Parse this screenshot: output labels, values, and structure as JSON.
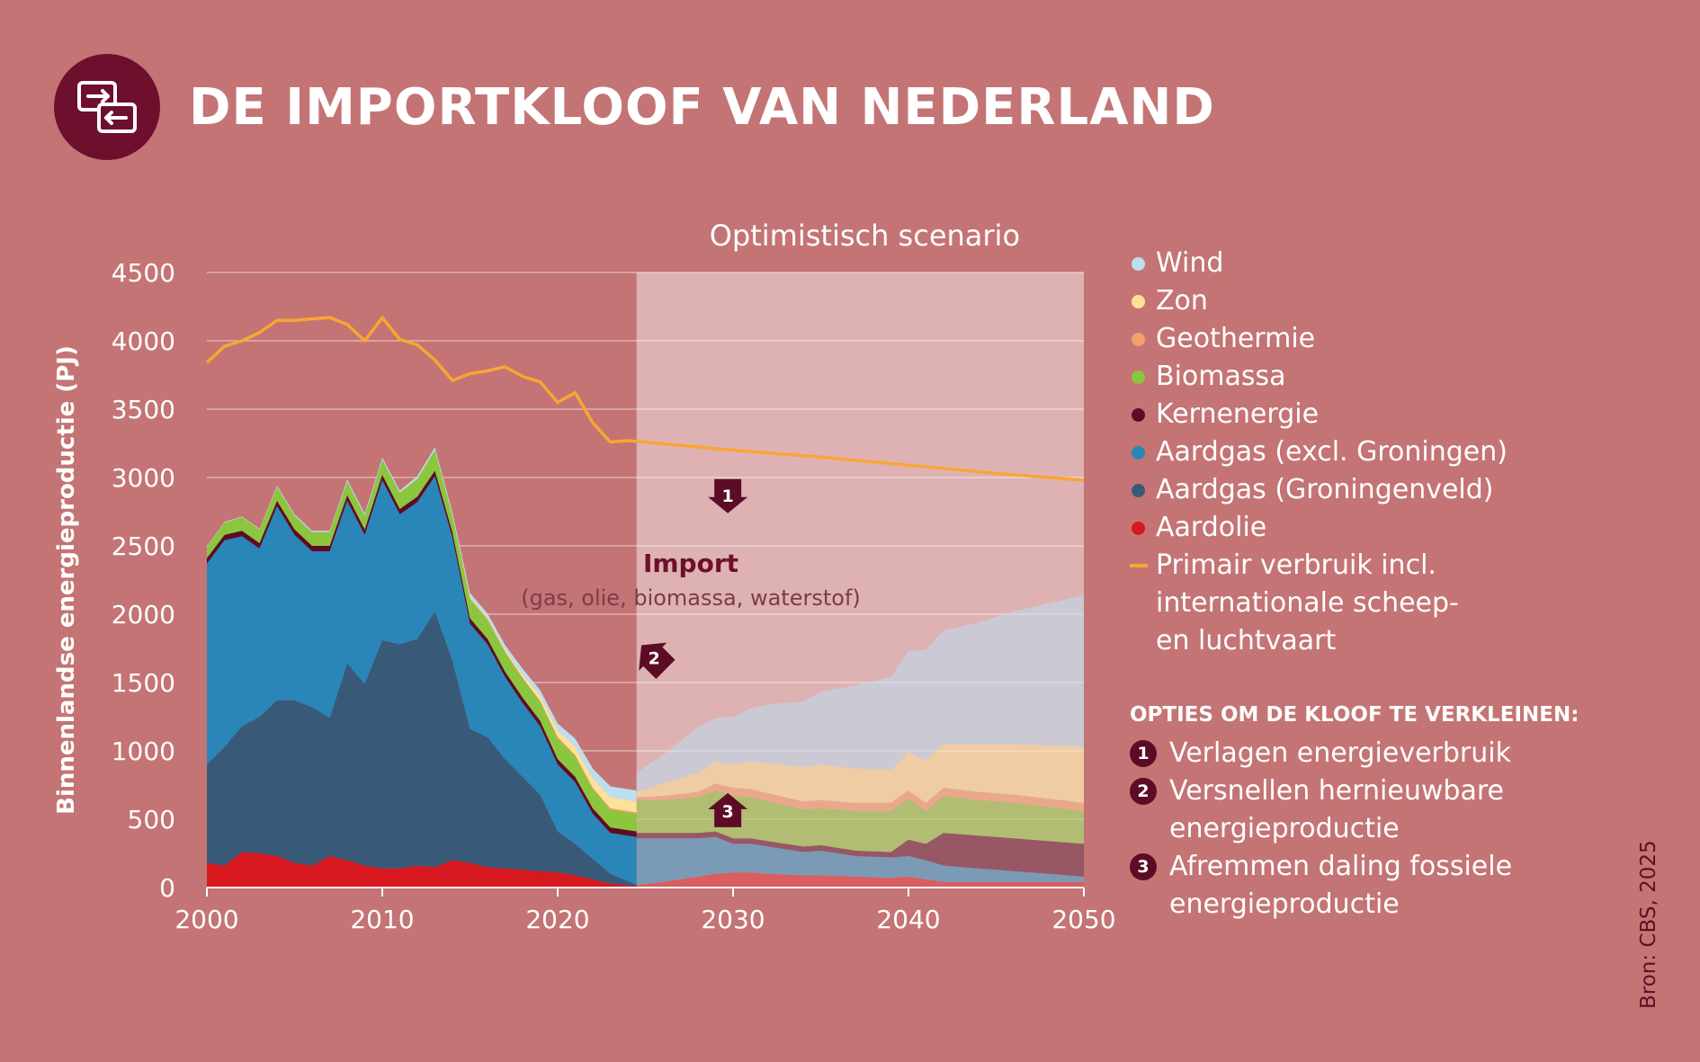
{
  "title": "DE IMPORTKLOOF VAN NEDERLAND",
  "icon": "exchange-arrows-icon",
  "source": "Bron: CBS, 2025",
  "colors": {
    "background": "#c47474",
    "accent": "#6e0f2d",
    "Wind": "#bcdff0",
    "Zon": "#ffe29a",
    "Geothermie": "#f4a06b",
    "Biomassa": "#8cc63f",
    "Kernenergie": "#5d0c25",
    "AardgasExcl": "#2a86b8",
    "AardgasGroningen": "#385a78",
    "Aardolie": "#d7181f",
    "Verbruik": "#f7a632"
  },
  "options_title": "OPTIES OM DE KLOOF TE VERKLEINEN:",
  "options": [
    {
      "num": "1",
      "label": "Verlagen energieverbruik"
    },
    {
      "num": "2",
      "label": "Versnellen hernieuwbare energieproductie"
    },
    {
      "num": "3",
      "label": "Afremmen daling fossiele energieproductie"
    }
  ],
  "chart_data": {
    "type": "area",
    "scenario_label": "Optimistisch scenario",
    "scenario_start": 2024.5,
    "ylabel": "Binnenlandse energieproductie (PJ)",
    "xlim": [
      2000,
      2050
    ],
    "ylim": [
      0,
      4500
    ],
    "xticks": [
      "2000",
      "2010",
      "2020",
      "2030",
      "2040",
      "2050"
    ],
    "yticks": [
      "0",
      "500",
      "1000",
      "1500",
      "2000",
      "2500",
      "3000",
      "3500",
      "4000",
      "4500"
    ],
    "grid": true,
    "legend_position": "right",
    "import_label": "Import",
    "import_sublabel": "(gas, olie, biomassa, waterstof)",
    "markers": [
      {
        "num": "1",
        "x": 2029.7,
        "y": 2870,
        "direction": "down"
      },
      {
        "num": "2",
        "x": 2025.5,
        "y": 1680,
        "direction": "up-left"
      },
      {
        "num": "3",
        "x": 2029.7,
        "y": 560,
        "direction": "up"
      }
    ],
    "historical": {
      "x": [
        2000,
        2001,
        2002,
        2003,
        2004,
        2005,
        2006,
        2007,
        2008,
        2009,
        2010,
        2011,
        2012,
        2013,
        2014,
        2015,
        2016,
        2017,
        2018,
        2019,
        2020,
        2021,
        2022,
        2023,
        2024.5
      ],
      "series": [
        {
          "name": "Aardolie",
          "values": [
            180,
            160,
            260,
            250,
            230,
            180,
            160,
            230,
            200,
            160,
            140,
            140,
            160,
            150,
            200,
            180,
            150,
            140,
            130,
            120,
            110,
            90,
            60,
            30,
            10
          ]
        },
        {
          "name": "Aardgas (Groningenveld)",
          "values": [
            720,
            870,
            920,
            1000,
            1140,
            1190,
            1160,
            1010,
            1440,
            1330,
            1670,
            1640,
            1660,
            1870,
            1460,
            980,
            950,
            800,
            680,
            560,
            300,
            230,
            150,
            70,
            10
          ]
        },
        {
          "name": "Aardgas (excl. Groningen)",
          "values": [
            1470,
            1510,
            1390,
            1230,
            1420,
            1210,
            1140,
            1220,
            1190,
            1090,
            1170,
            950,
            1000,
            990,
            900,
            770,
            680,
            600,
            540,
            500,
            490,
            450,
            330,
            300,
            350
          ]
        },
        {
          "name": "Kernenergie",
          "values": [
            40,
            40,
            40,
            40,
            40,
            40,
            40,
            40,
            40,
            40,
            40,
            40,
            40,
            40,
            40,
            40,
            40,
            40,
            40,
            40,
            40,
            40,
            40,
            40,
            40
          ]
        },
        {
          "name": "Biomassa",
          "values": [
            80,
            90,
            100,
            100,
            100,
            100,
            100,
            100,
            100,
            100,
            110,
            120,
            130,
            150,
            120,
            140,
            140,
            140,
            140,
            140,
            150,
            150,
            140,
            130,
            130
          ]
        },
        {
          "name": "Geothermie",
          "values": [
            0,
            0,
            0,
            0,
            0,
            0,
            0,
            0,
            0,
            0,
            0,
            0,
            0,
            0,
            0,
            5,
            5,
            5,
            5,
            5,
            10,
            10,
            10,
            10,
            10
          ]
        },
        {
          "name": "Zon",
          "values": [
            0,
            0,
            0,
            0,
            0,
            0,
            0,
            0,
            0,
            0,
            0,
            0,
            0,
            0,
            5,
            10,
            10,
            15,
            25,
            40,
            50,
            60,
            70,
            80,
            80
          ]
        },
        {
          "name": "Wind",
          "values": [
            5,
            5,
            5,
            5,
            10,
            10,
            10,
            10,
            15,
            15,
            15,
            15,
            20,
            20,
            20,
            30,
            30,
            35,
            40,
            40,
            50,
            60,
            70,
            80,
            80
          ]
        }
      ]
    },
    "scenario": {
      "x": [
        2024.5,
        2026,
        2028,
        2029,
        2030,
        2031,
        2032,
        2034,
        2035,
        2037,
        2039,
        2040,
        2041,
        2042,
        2044,
        2046,
        2048,
        2050
      ],
      "series": [
        {
          "name": "Aardolie",
          "values": [
            20,
            40,
            80,
            100,
            110,
            110,
            100,
            90,
            90,
            80,
            70,
            80,
            60,
            40,
            40,
            40,
            40,
            40
          ]
        },
        {
          "name": "Aardgas (Groningenveld)",
          "values": [
            0,
            0,
            0,
            0,
            0,
            0,
            0,
            0,
            0,
            0,
            0,
            0,
            0,
            0,
            0,
            0,
            0,
            0
          ]
        },
        {
          "name": "Aardgas (excl. Groningen)",
          "values": [
            340,
            320,
            280,
            270,
            210,
            210,
            200,
            170,
            180,
            150,
            150,
            150,
            140,
            120,
            100,
            80,
            60,
            40
          ]
        },
        {
          "name": "Kernenergie",
          "values": [
            40,
            40,
            40,
            40,
            40,
            40,
            40,
            40,
            40,
            40,
            40,
            120,
            120,
            240,
            240,
            240,
            240,
            240
          ]
        },
        {
          "name": "Biomassa",
          "values": [
            240,
            240,
            260,
            300,
            310,
            300,
            290,
            270,
            270,
            290,
            300,
            300,
            240,
            270,
            260,
            260,
            250,
            240
          ]
        },
        {
          "name": "Geothermie",
          "values": [
            20,
            30,
            40,
            50,
            60,
            60,
            60,
            60,
            60,
            60,
            60,
            60,
            60,
            60,
            60,
            60,
            60,
            60
          ]
        },
        {
          "name": "Zon",
          "values": [
            40,
            90,
            140,
            160,
            170,
            200,
            220,
            250,
            260,
            250,
            240,
            280,
            310,
            320,
            350,
            370,
            390,
            410
          ]
        },
        {
          "name": "Wind",
          "values": [
            140,
            210,
            330,
            320,
            350,
            390,
            430,
            480,
            530,
            610,
            680,
            740,
            810,
            830,
            890,
            970,
            1040,
            1110
          ]
        }
      ]
    },
    "consumption": {
      "name": "Primair verbruik incl. internationale scheep- en luchtvaart",
      "x": [
        2000,
        2001,
        2002,
        2003,
        2004,
        2005,
        2006,
        2007,
        2008,
        2009,
        2010,
        2011,
        2012,
        2013,
        2014,
        2015,
        2016,
        2017,
        2018,
        2019,
        2020,
        2021,
        2022,
        2023,
        2024,
        2030,
        2035,
        2040,
        2045,
        2050
      ],
      "values": [
        3840,
        3960,
        4000,
        4060,
        4150,
        4150,
        4160,
        4170,
        4120,
        4000,
        4170,
        4010,
        3970,
        3860,
        3710,
        3760,
        3780,
        3810,
        3740,
        3700,
        3550,
        3620,
        3400,
        3260,
        3270,
        3200,
        3150,
        3090,
        3030,
        2980
      ]
    },
    "legend": [
      {
        "key": "Wind",
        "label": "Wind",
        "kind": "dot"
      },
      {
        "key": "Zon",
        "label": "Zon",
        "kind": "dot"
      },
      {
        "key": "Geothermie",
        "label": "Geothermie",
        "kind": "dot"
      },
      {
        "key": "Biomassa",
        "label": "Biomassa",
        "kind": "dot"
      },
      {
        "key": "Kernenergie",
        "label": "Kernenergie",
        "kind": "dot"
      },
      {
        "key": "AardgasExcl",
        "label": "Aardgas (excl. Groningen)",
        "kind": "dot"
      },
      {
        "key": "AardgasGroningen",
        "label": "Aardgas (Groningenveld)",
        "kind": "dot"
      },
      {
        "key": "Aardolie",
        "label": "Aardolie",
        "kind": "dot"
      },
      {
        "key": "Verbruik",
        "label": "Primair verbruik incl. internationale scheep- en luchtvaart",
        "kind": "line"
      }
    ]
  }
}
